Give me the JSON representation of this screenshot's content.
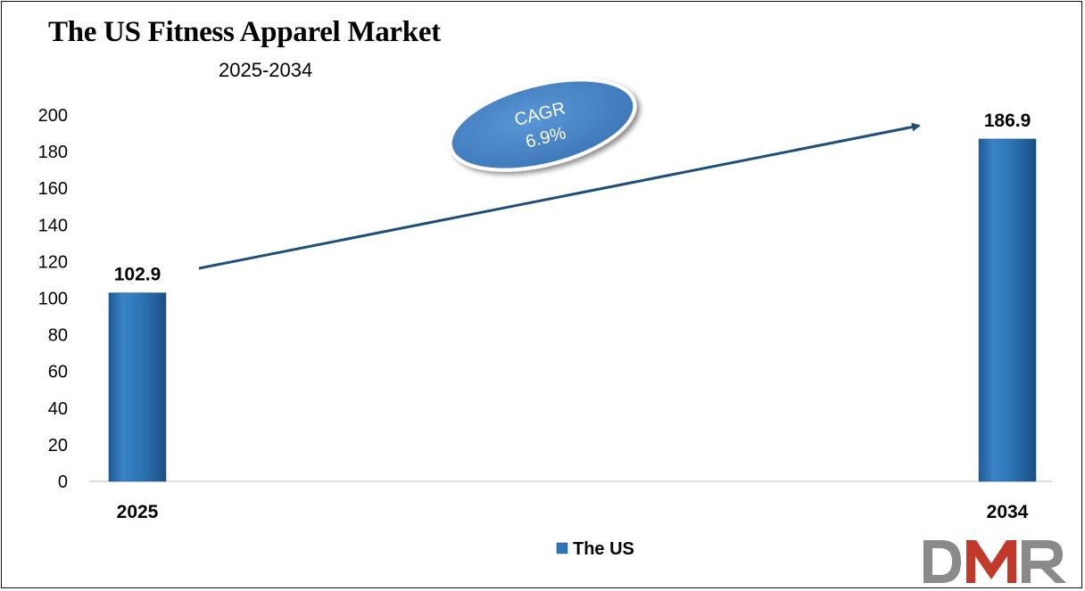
{
  "chart_data": {
    "type": "bar",
    "title": "The US Fitness Apparel Market",
    "subtitle": "2025-2034",
    "categories": [
      "2025",
      "2034"
    ],
    "series": [
      {
        "name": "The US",
        "values": [
          102.9,
          186.9
        ],
        "color": "#2E75B6"
      }
    ],
    "data_labels": [
      "102.9",
      "186.9"
    ],
    "ylim": [
      0,
      200
    ],
    "yticks": [
      0,
      20,
      40,
      60,
      80,
      100,
      120,
      140,
      160,
      180,
      200
    ],
    "grid": false,
    "legend": "bottom-center",
    "annotation": {
      "line1": "CAGR",
      "line2": "6.9%",
      "color": "#4A86C8"
    }
  },
  "logo": {
    "text": "DMR",
    "colors": {
      "d": "#8A8A8A",
      "m": "#C0392B",
      "r": "#8A8A8A"
    }
  }
}
